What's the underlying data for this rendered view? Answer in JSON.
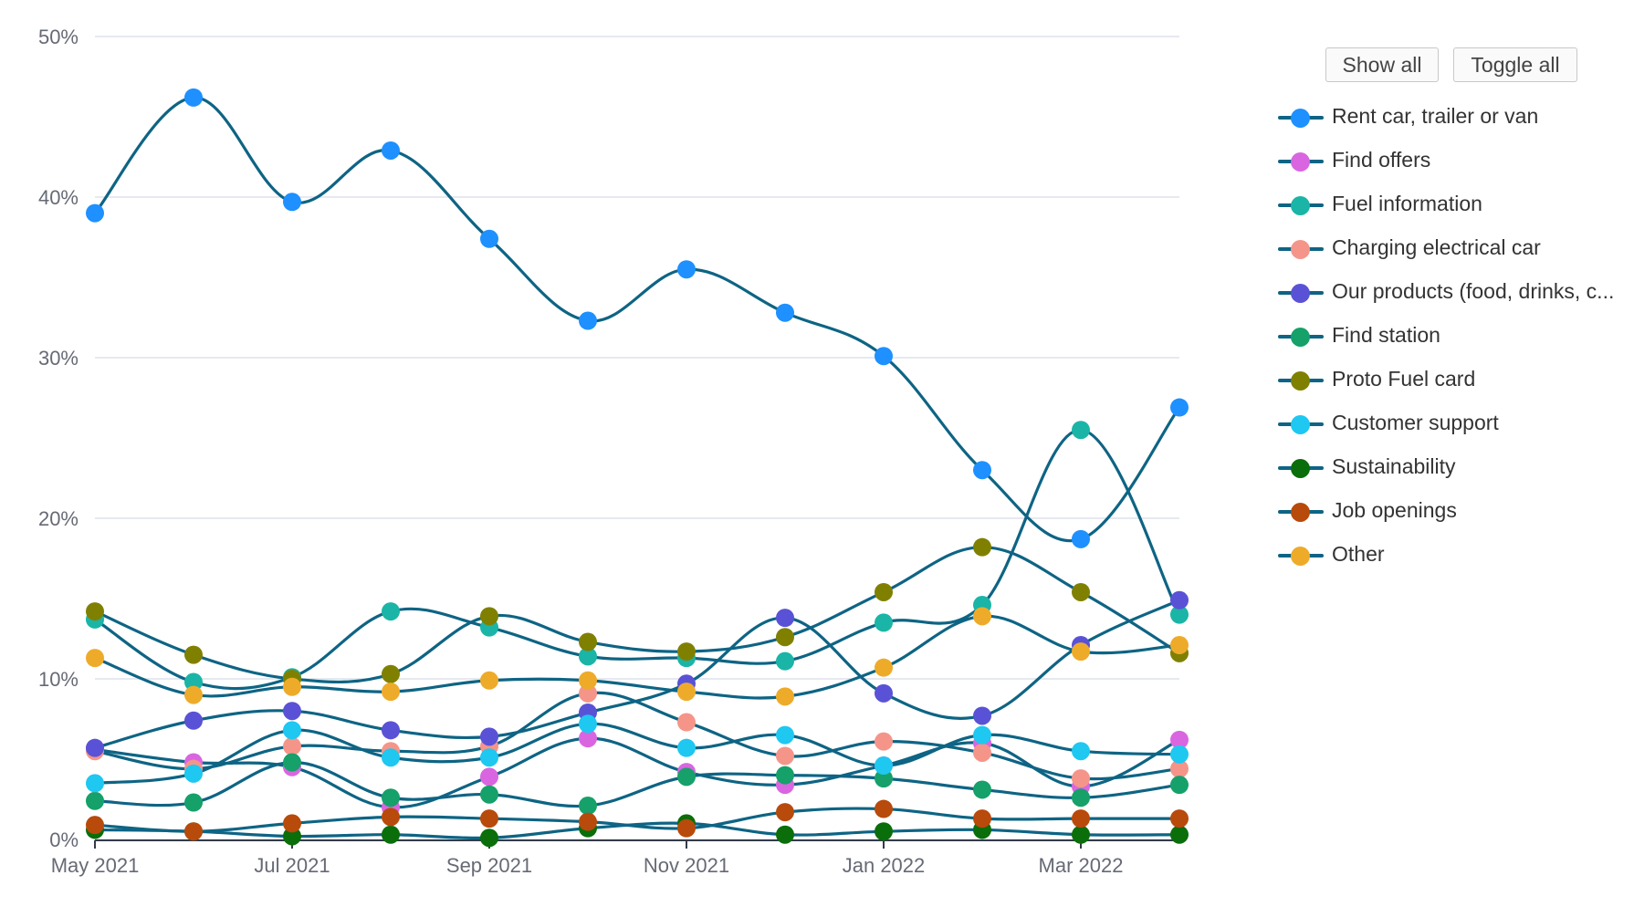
{
  "controls": {
    "show_all": "Show all",
    "toggle_all": "Toggle all"
  },
  "colors": {
    "line": "#0e6484",
    "grid": "#dde2ec",
    "axis_text": "#666a75"
  },
  "chart_data": {
    "type": "line",
    "x": [
      "May 2021",
      "Jun 2021",
      "Jul 2021",
      "Aug 2021",
      "Sep 2021",
      "Oct 2021",
      "Nov 2021",
      "Dec 2021",
      "Jan 2022",
      "Feb 2022",
      "Mar 2022",
      "Apr 2022"
    ],
    "x_tick_labels": [
      "May 2021",
      "Jul 2021",
      "Sep 2021",
      "Nov 2021",
      "Jan 2022",
      "Mar 2022"
    ],
    "y_tick_labels": [
      "0%",
      "10%",
      "20%",
      "30%",
      "40%",
      "50%"
    ],
    "ylim": [
      0,
      50
    ],
    "y_unit": "%",
    "grid": true,
    "legend_position": "right",
    "series": [
      {
        "name": "Rent car, trailer or van",
        "color": "#1e90ff",
        "values": [
          39.0,
          46.2,
          39.7,
          42.9,
          37.4,
          32.3,
          35.5,
          32.8,
          30.1,
          23.0,
          18.7,
          26.9
        ]
      },
      {
        "name": "Find offers",
        "color": "#d966e0",
        "values": [
          5.6,
          4.8,
          4.5,
          2.0,
          3.9,
          6.3,
          4.2,
          3.4,
          4.6,
          6.0,
          3.3,
          6.2
        ]
      },
      {
        "name": "Fuel information",
        "color": "#1ab5a6",
        "values": [
          13.7,
          9.8,
          10.1,
          14.2,
          13.2,
          11.4,
          11.3,
          11.1,
          13.5,
          14.6,
          25.5,
          14.0
        ]
      },
      {
        "name": "Charging electrical car",
        "color": "#f5958a",
        "values": [
          5.5,
          4.4,
          5.8,
          5.5,
          5.8,
          9.1,
          7.3,
          5.2,
          6.1,
          5.4,
          3.8,
          4.4
        ]
      },
      {
        "name": "Our products (food, drinks, c...",
        "color": "#5a52d6",
        "values": [
          5.7,
          7.4,
          8.0,
          6.8,
          6.4,
          7.9,
          9.7,
          13.8,
          9.1,
          7.7,
          12.1,
          14.9
        ]
      },
      {
        "name": "Find station",
        "color": "#16a06a",
        "values": [
          2.4,
          2.3,
          4.8,
          2.6,
          2.8,
          2.1,
          3.9,
          4.0,
          3.8,
          3.1,
          2.6,
          3.4
        ]
      },
      {
        "name": "Proto Fuel card",
        "color": "#808000",
        "values": [
          14.2,
          11.5,
          10.0,
          10.3,
          13.9,
          12.3,
          11.7,
          12.6,
          15.4,
          18.2,
          15.4,
          11.6
        ]
      },
      {
        "name": "Customer support",
        "color": "#1ec8f0",
        "values": [
          3.5,
          4.1,
          6.8,
          5.1,
          5.1,
          7.2,
          5.7,
          6.5,
          4.6,
          6.5,
          5.5,
          5.3
        ]
      },
      {
        "name": "Sustainability",
        "color": "#0a6e0a",
        "values": [
          0.6,
          0.5,
          0.2,
          0.3,
          0.1,
          0.7,
          1.0,
          0.3,
          0.5,
          0.6,
          0.3,
          0.3
        ]
      },
      {
        "name": "Job openings",
        "color": "#b84a0c",
        "values": [
          0.9,
          0.5,
          1.0,
          1.4,
          1.3,
          1.1,
          0.7,
          1.7,
          1.9,
          1.3,
          1.3,
          1.3
        ]
      },
      {
        "name": "Other",
        "color": "#eeab2a",
        "values": [
          11.3,
          9.0,
          9.5,
          9.2,
          9.9,
          9.9,
          9.2,
          8.9,
          10.7,
          13.9,
          11.7,
          12.1
        ]
      }
    ]
  }
}
